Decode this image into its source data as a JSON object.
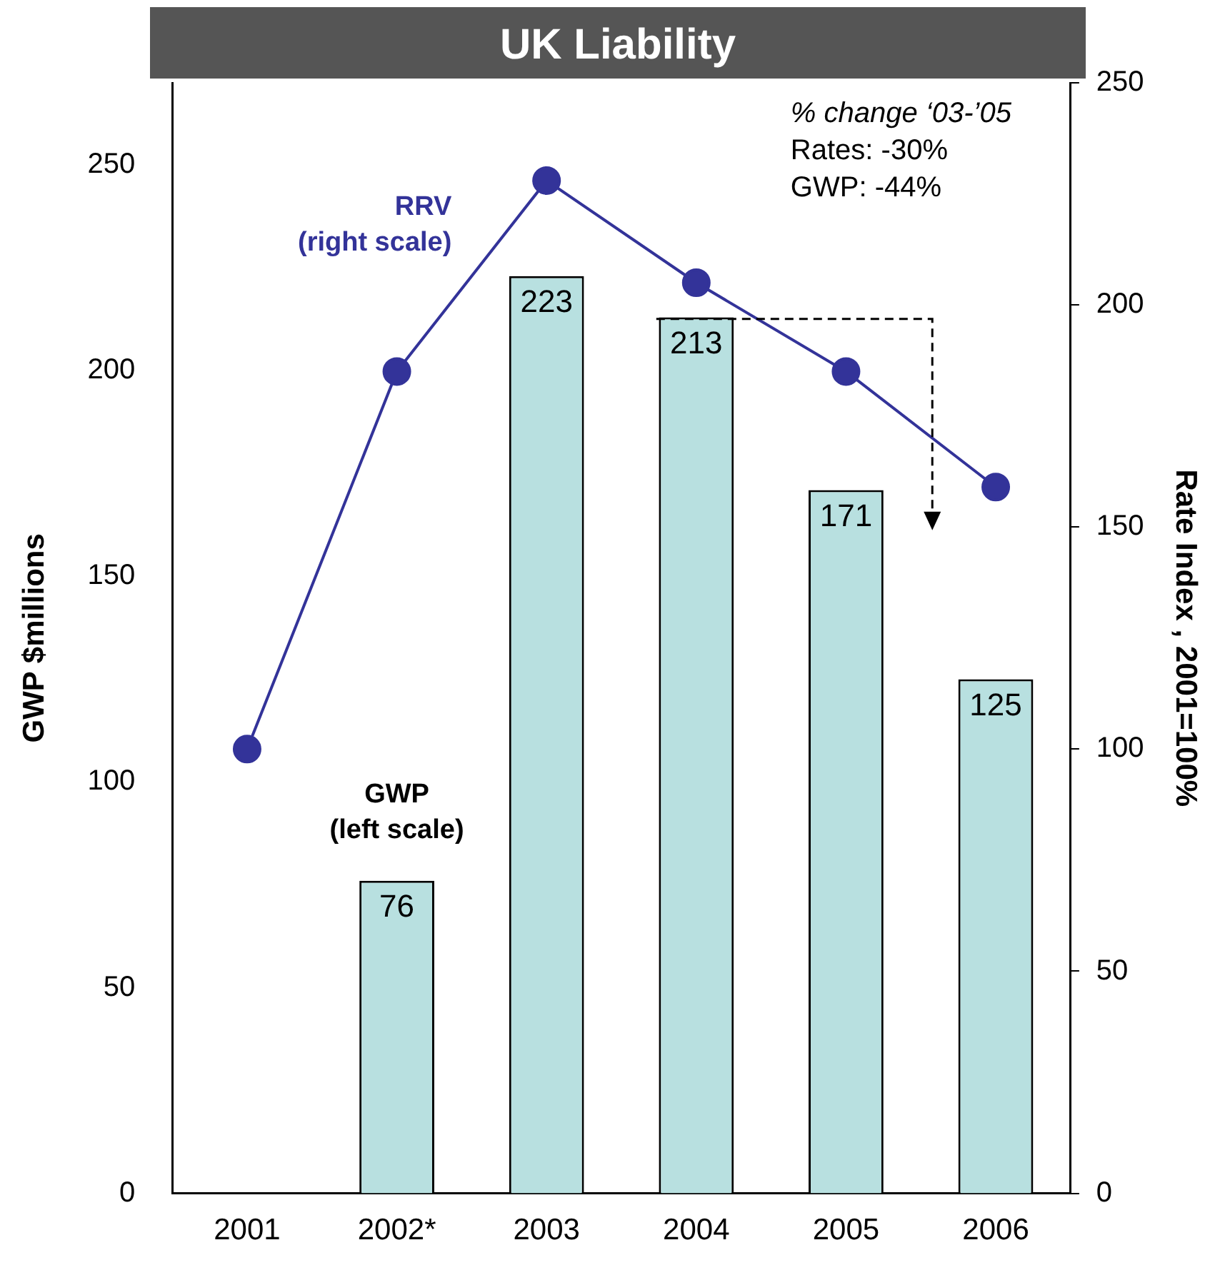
{
  "chart_data": {
    "type": "bar",
    "title": "UK Liability",
    "ylabel": "GWP $millions",
    "y2label": "Rate Index , 2001=100%",
    "categories": [
      "2001",
      "2002*",
      "2003",
      "2004",
      "2005",
      "2006"
    ],
    "series": [
      {
        "name": "GWP (left scale)",
        "color": "#b8e0e0",
        "values": [
          null,
          76,
          223,
          213,
          171,
          125
        ],
        "value_labels": [
          null,
          "76",
          "223",
          "213",
          "171",
          "125"
        ]
      },
      {
        "name": "RRV (right scale)",
        "type": "line",
        "axis": "y2",
        "color": "#333399",
        "marker": "circle",
        "values": [
          100,
          185,
          228,
          205,
          185,
          159
        ]
      }
    ],
    "ylim": [
      0,
      270
    ],
    "yticks": [
      0,
      50,
      100,
      150,
      200,
      250
    ],
    "y2lim": [
      0,
      250
    ],
    "y2ticks": [
      0,
      50,
      100,
      150,
      200,
      250
    ],
    "grid": false,
    "legend": false,
    "annotations": [
      "% change ‘03-’05",
      "Rates: -30%",
      "GWP: -44%"
    ]
  }
}
